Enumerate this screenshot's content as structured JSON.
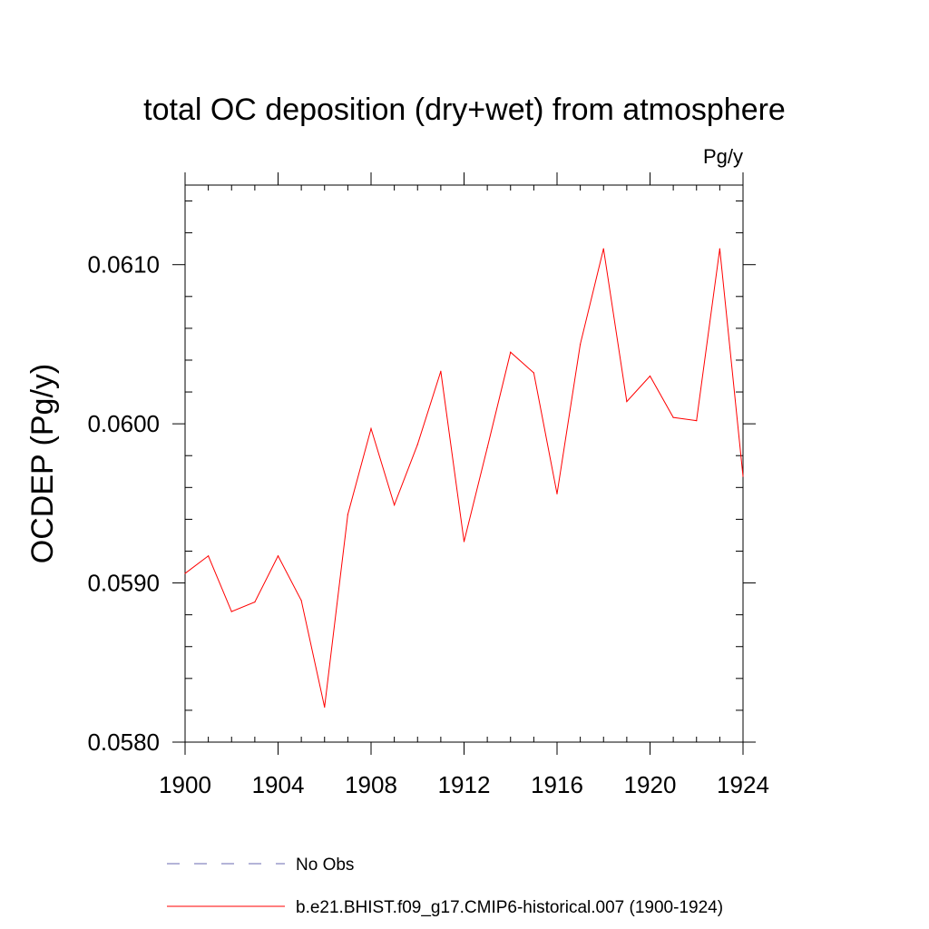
{
  "chart_data": {
    "type": "line",
    "title": "total OC deposition (dry+wet) from atmosphere",
    "units": "Pg/y",
    "ylabel": "OCDEP  (Pg/y)",
    "xlabel": "",
    "xlim": [
      1900,
      1924
    ],
    "ylim": [
      0.058,
      0.0615
    ],
    "x_ticks": [
      1900,
      1904,
      1908,
      1912,
      1916,
      1920,
      1924
    ],
    "y_ticks": [
      0.058,
      0.059,
      0.06,
      0.061
    ],
    "x_tick_labels": [
      "1900",
      "1904",
      "1908",
      "1912",
      "1916",
      "1920",
      "1924"
    ],
    "y_tick_labels": [
      "0.0580",
      "0.0590",
      "0.0600",
      "0.0610"
    ],
    "grid": false,
    "legend_position": "bottom",
    "x": [
      1900,
      1901,
      1902,
      1903,
      1904,
      1905,
      1906,
      1907,
      1908,
      1909,
      1910,
      1911,
      1912,
      1913,
      1914,
      1915,
      1916,
      1917,
      1918,
      1919,
      1920,
      1921,
      1922,
      1923,
      1924
    ],
    "series": [
      {
        "name": "b.e21.BHIST.f09_g17.CMIP6-historical.007 (1900-1924)",
        "color": "#ff0000",
        "style": "solid",
        "values": [
          0.05906,
          0.05917,
          0.05882,
          0.05888,
          0.05917,
          0.05889,
          0.05822,
          0.05943,
          0.05997,
          0.05949,
          0.05987,
          0.06033,
          0.05926,
          0.05985,
          0.06045,
          0.06032,
          0.05956,
          0.0605,
          0.0611,
          0.06014,
          0.0603,
          0.06004,
          0.06002,
          0.0611,
          0.05967
        ]
      }
    ],
    "legend": [
      {
        "label": "No Obs",
        "color": "#6a6ab0",
        "style": "dashed"
      },
      {
        "label": "b.e21.BHIST.f09_g17.CMIP6-historical.007 (1900-1924)",
        "color": "#ff0000",
        "style": "solid"
      }
    ]
  }
}
